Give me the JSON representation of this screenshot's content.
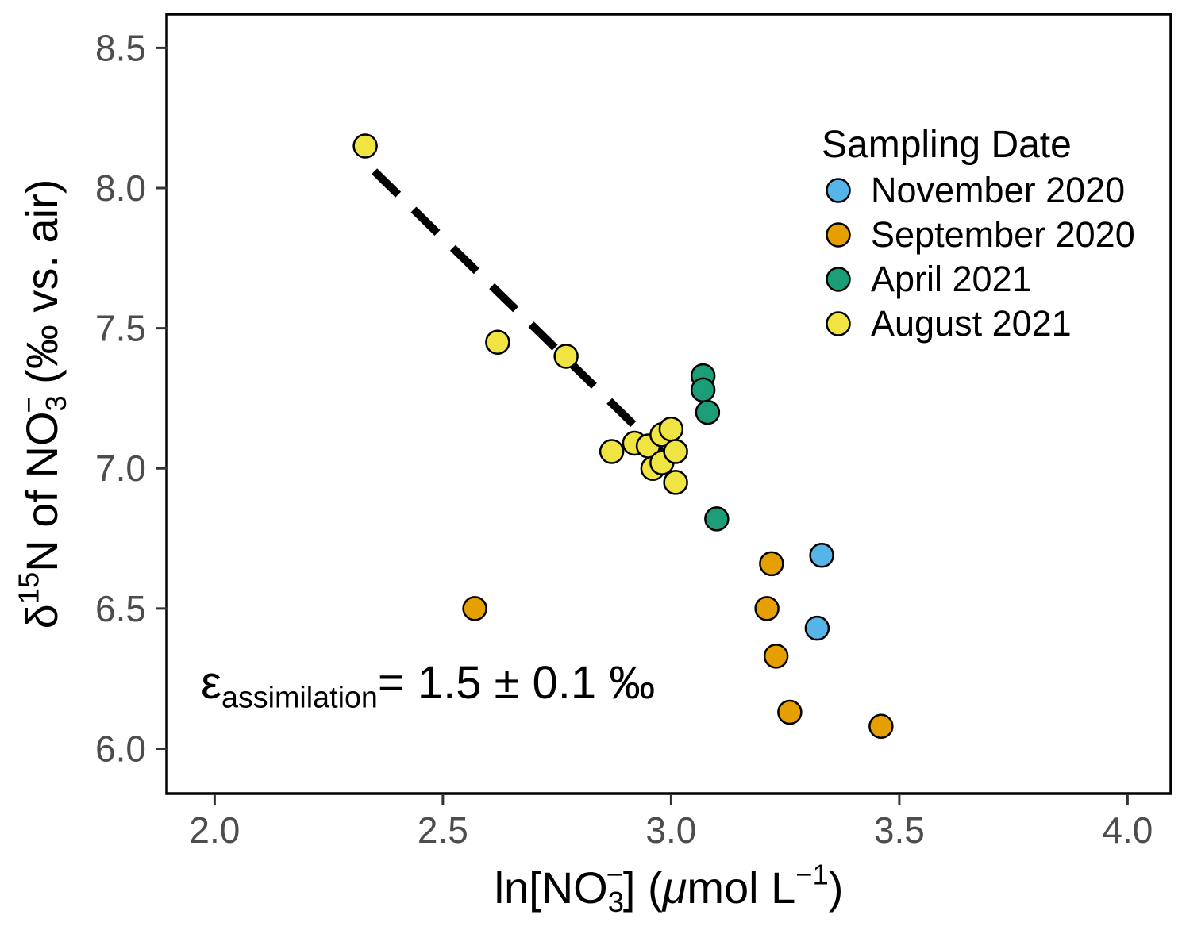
{
  "chart_data": {
    "type": "scatter",
    "title": "",
    "xlabel": "ln[NO3−] (μmol L−1)",
    "ylabel": "δ15N of NO3− (‰ vs. air)",
    "xlabel_segments": [
      {
        "t": "ln[NO"
      },
      {
        "t": "3",
        "script": "sub"
      },
      {
        "t": "−",
        "script": "sup",
        "dx": -0.4
      },
      {
        "t": "] ("
      },
      {
        "t": "μ",
        "italic": true
      },
      {
        "t": "mol L"
      },
      {
        "t": "−1",
        "script": "sup"
      },
      {
        "t": ")"
      }
    ],
    "ylabel_segments": [
      {
        "t": "δ"
      },
      {
        "t": "15",
        "script": "sup"
      },
      {
        "t": "N of NO"
      },
      {
        "t": "3",
        "script": "sub"
      },
      {
        "t": "−",
        "script": "sup",
        "dx": -0.4
      },
      {
        "t": " (‰ vs. air)"
      }
    ],
    "xlim": [
      1.895,
      4.095
    ],
    "ylim": [
      5.84,
      8.62
    ],
    "grid": false,
    "x_ticks": [
      {
        "v": 2.0,
        "label": "2.0"
      },
      {
        "v": 2.5,
        "label": "2.5"
      },
      {
        "v": 3.0,
        "label": "3.0"
      },
      {
        "v": 3.5,
        "label": "3.5"
      },
      {
        "v": 4.0,
        "label": "4.0"
      }
    ],
    "y_ticks": [
      {
        "v": 6.0,
        "label": "6.0"
      },
      {
        "v": 6.5,
        "label": "6.5"
      },
      {
        "v": 7.0,
        "label": "7.0"
      },
      {
        "v": 7.5,
        "label": "7.5"
      },
      {
        "v": 8.0,
        "label": "8.0"
      },
      {
        "v": 8.5,
        "label": "8.5"
      }
    ],
    "legend": {
      "title": "Sampling Date",
      "position": "upper-right",
      "entries": [
        {
          "label": "November 2020",
          "color": "#56B4E9"
        },
        {
          "label": "September 2020",
          "color": "#E69F00"
        },
        {
          "label": "April 2021",
          "color": "#1B9E77"
        },
        {
          "label": "August 2021",
          "color": "#F0E442"
        }
      ]
    },
    "annotation": {
      "text": "ε_assimilation = 1.5 ± 0.1 ‰",
      "segments": [
        {
          "t": "ε"
        },
        {
          "t": "assimilation",
          "script": "sub"
        },
        {
          "t": "= 1.5 ± 0.1 ‰"
        }
      ],
      "x": 1.97,
      "y": 6.18
    },
    "trend_line": {
      "style": "dashed",
      "color": "#000000",
      "x": [
        2.35,
        3.01
      ],
      "y": [
        8.06,
        7.01
      ]
    },
    "series": [
      {
        "name": "November 2020",
        "color": "#56B4E9",
        "points": [
          [
            3.33,
            6.69
          ],
          [
            3.32,
            6.43
          ]
        ]
      },
      {
        "name": "September 2020",
        "color": "#E69F00",
        "points": [
          [
            2.57,
            6.5
          ],
          [
            3.22,
            6.66
          ],
          [
            3.21,
            6.5
          ],
          [
            3.23,
            6.33
          ],
          [
            3.26,
            6.13
          ],
          [
            3.46,
            6.08
          ]
        ]
      },
      {
        "name": "April 2021",
        "color": "#1B9E77",
        "points": [
          [
            3.07,
            7.33
          ],
          [
            3.07,
            7.28
          ],
          [
            3.08,
            7.2
          ],
          [
            3.1,
            6.82
          ]
        ]
      },
      {
        "name": "August 2021",
        "color": "#F0E442",
        "points": [
          [
            2.33,
            8.15
          ],
          [
            2.62,
            7.45
          ],
          [
            2.77,
            7.4
          ],
          [
            2.87,
            7.06
          ],
          [
            2.92,
            7.09
          ],
          [
            2.95,
            7.08
          ],
          [
            2.98,
            7.12
          ],
          [
            3.0,
            7.14
          ],
          [
            2.96,
            7.0
          ],
          [
            2.98,
            7.02
          ],
          [
            3.01,
            7.06
          ],
          [
            3.01,
            6.95
          ]
        ]
      }
    ],
    "marker": {
      "radius": 14.5,
      "stroke": "#000000",
      "stroke_width": 2.5
    },
    "colors": {
      "panel_border": "#000000",
      "tick": "#333333",
      "tick_label": "#4D4D4D",
      "axis_title": "#000000",
      "legend_text": "#000000",
      "annotation_text": "#000000",
      "background": "#FFFFFF"
    }
  }
}
